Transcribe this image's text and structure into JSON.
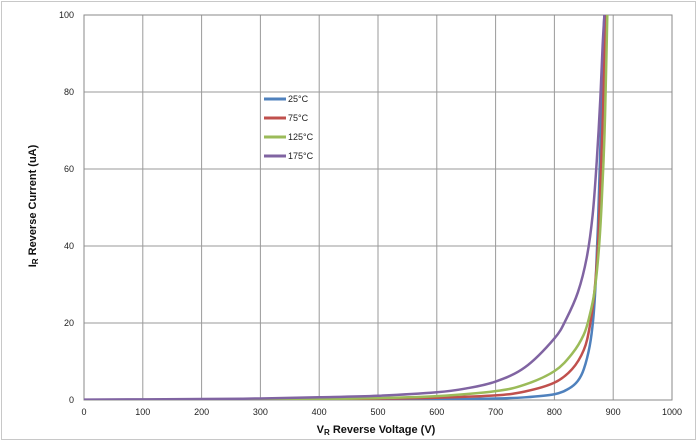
{
  "chart_data": {
    "type": "line",
    "xlabel_prefix": "V",
    "xlabel_sub": "R",
    "xlabel_rest": " Reverse Voltage (V)",
    "ylabel_prefix": "I",
    "ylabel_sub": "R",
    "ylabel_rest": " Reverse Current (uA)",
    "xlim": [
      0,
      1000
    ],
    "ylim": [
      0,
      100
    ],
    "xticks": [
      "0",
      "100",
      "200",
      "300",
      "400",
      "500",
      "600",
      "700",
      "800",
      "900",
      "1000"
    ],
    "yticks": [
      "0",
      "20",
      "40",
      "60",
      "80",
      "100"
    ],
    "grid": true,
    "legend_position": "inside-upper-left-center",
    "series": [
      {
        "name": "25°C",
        "color": "#4f81bd",
        "x": [
          0,
          200,
          400,
          600,
          700,
          750,
          800,
          825,
          840,
          850,
          860,
          866,
          870,
          874,
          878,
          882,
          884,
          885
        ],
        "y": [
          0.02,
          0.05,
          0.1,
          0.2,
          0.4,
          0.7,
          1.5,
          3,
          5,
          8,
          14,
          21,
          30,
          45,
          65,
          85,
          96,
          100
        ]
      },
      {
        "name": "75°C",
        "color": "#c0504d",
        "x": [
          0,
          200,
          400,
          500,
          600,
          700,
          750,
          800,
          830,
          850,
          860,
          868,
          874,
          878,
          882,
          885,
          887
        ],
        "y": [
          0.03,
          0.08,
          0.2,
          0.35,
          0.6,
          1.2,
          2.2,
          4.5,
          8,
          13,
          19,
          28,
          40,
          55,
          72,
          88,
          100
        ]
      },
      {
        "name": "125°C",
        "color": "#9bbb59",
        "x": [
          0,
          200,
          400,
          500,
          600,
          700,
          750,
          800,
          830,
          850,
          860,
          868,
          875,
          880,
          885,
          888,
          890
        ],
        "y": [
          0.05,
          0.12,
          0.3,
          0.5,
          1.0,
          2.3,
          4.0,
          7.5,
          12,
          17,
          22,
          28,
          38,
          50,
          68,
          86,
          100
        ]
      },
      {
        "name": "175°C",
        "color": "#8064a2",
        "x": [
          0,
          200,
          300,
          400,
          500,
          600,
          650,
          700,
          750,
          800,
          820,
          840,
          855,
          865,
          872,
          878,
          882,
          885
        ],
        "y": [
          0.1,
          0.25,
          0.4,
          0.7,
          1.1,
          2.0,
          3.0,
          4.8,
          8.5,
          16,
          21,
          28,
          37,
          48,
          62,
          78,
          92,
          100
        ]
      }
    ]
  }
}
